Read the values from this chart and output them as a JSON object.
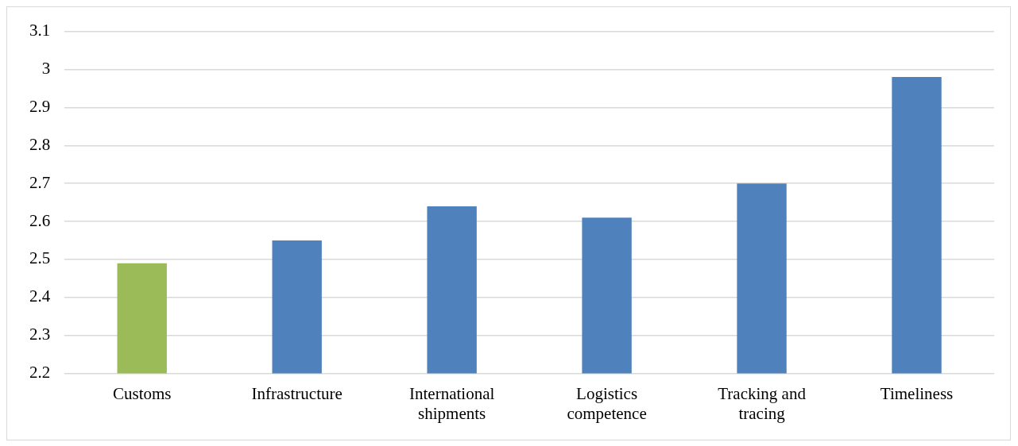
{
  "chart_data": {
    "type": "bar",
    "categories": [
      "Customs",
      "Infrastructure",
      "International shipments",
      "Logistics competence",
      "Tracking and tracing",
      "Timeliness"
    ],
    "values": [
      2.49,
      2.55,
      2.64,
      2.61,
      2.7,
      2.98
    ],
    "colors": [
      "#9bbb59",
      "#4f81bd",
      "#4f81bd",
      "#4f81bd",
      "#4f81bd",
      "#4f81bd"
    ],
    "ylim": [
      2.2,
      3.1
    ],
    "yticks": [
      2.2,
      2.3,
      2.4,
      2.5,
      2.6,
      2.7,
      2.8,
      2.9,
      3,
      3.1
    ],
    "grid": "y",
    "legend": false
  }
}
